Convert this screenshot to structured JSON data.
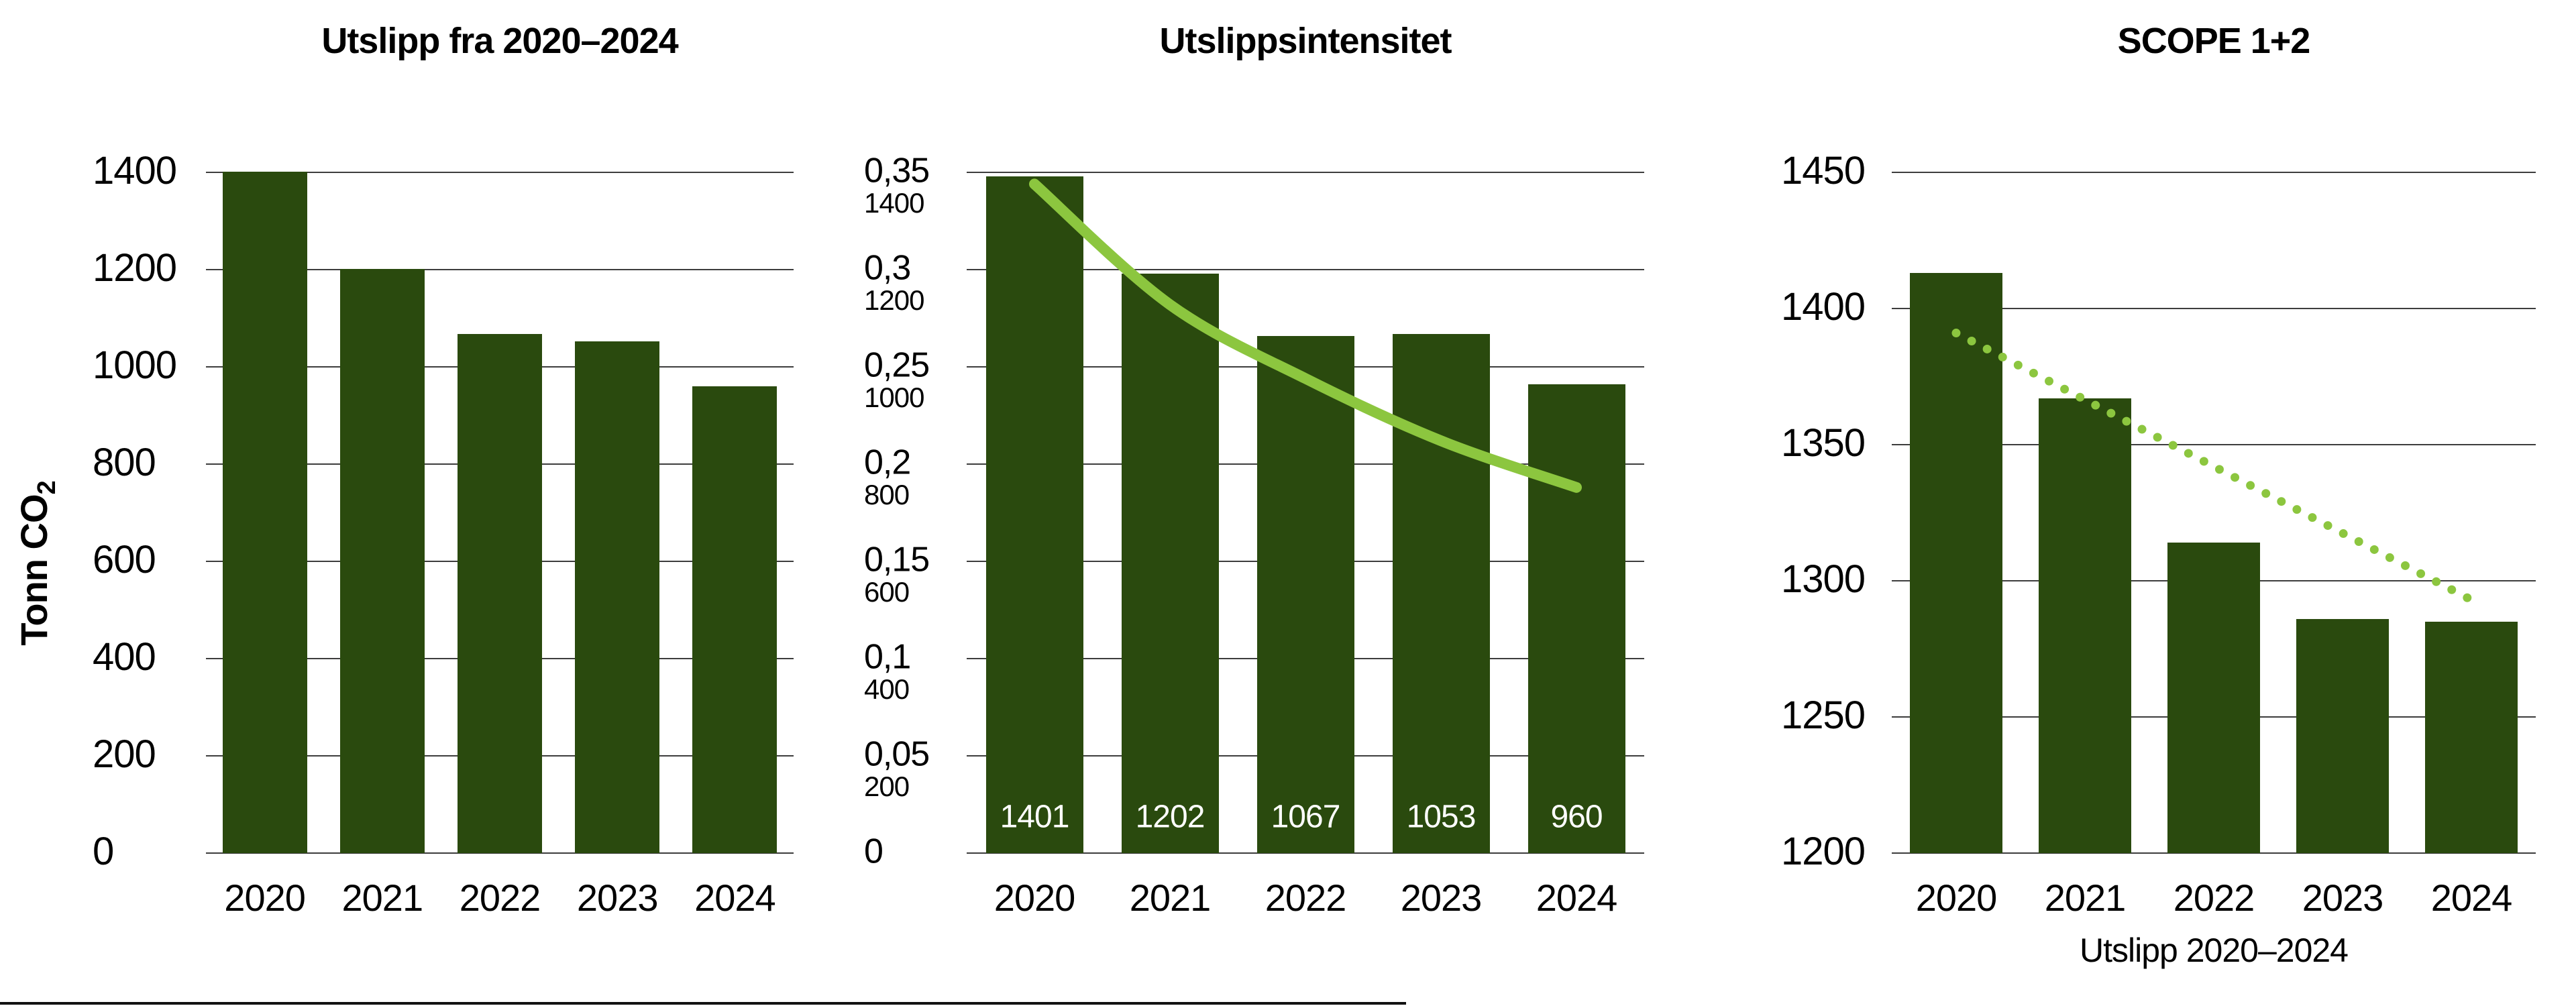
{
  "colors": {
    "bar": "#2a4a0e",
    "trend_line": "#8cc63f",
    "gridline": "#3d3d3d",
    "text": "#000000",
    "bar_label_text": "#ffffff",
    "background": "#ffffff"
  },
  "chart_data": [
    {
      "type": "bar",
      "title": "Utslipp fra 2020–2024",
      "ylabel_main": "Tonn CO",
      "ylabel_sub": "2",
      "categories": [
        "2020",
        "2021",
        "2022",
        "2023",
        "2024"
      ],
      "values": [
        1401,
        1202,
        1067,
        1053,
        960
      ],
      "ylim": [
        0,
        1400
      ],
      "ytick_step": 200,
      "ytick_labels": [
        "1400",
        "1200",
        "1000",
        "800",
        "600",
        "400",
        "200",
        "0"
      ],
      "grid": true,
      "legend": "none"
    },
    {
      "type": "bar+line",
      "title": "Utslippsintensitet",
      "categories": [
        "2020",
        "2021",
        "2022",
        "2023",
        "2024"
      ],
      "series": [
        {
          "name": "utslippsintensitet-bars",
          "type": "bar",
          "values": [
            0.348,
            0.298,
            0.266,
            0.267,
            0.241
          ]
        },
        {
          "name": "trend-curve",
          "type": "line",
          "values": [
            0.344,
            0.282,
            0.244,
            0.212,
            0.188
          ]
        }
      ],
      "bar_value_labels": [
        "1401",
        "1202",
        "1067",
        "1053",
        "960"
      ],
      "ylim": [
        0,
        0.35
      ],
      "ytick_step": 0.05,
      "ytick_labels": [
        "0,35",
        "0,3",
        "0,25",
        "0,2",
        "0,15",
        "0,1",
        "0,05",
        "0"
      ],
      "secondary_ytick_labels": [
        "1400",
        "1200",
        "1000",
        "800",
        "600",
        "400",
        "200"
      ],
      "grid": true,
      "legend": "none"
    },
    {
      "type": "bar+trend",
      "title": "SCOPE 1+2",
      "xlabel": "Utslipp 2020–2024",
      "categories": [
        "2020",
        "2021",
        "2022",
        "2023",
        "2024"
      ],
      "values": [
        1413,
        1367,
        1314,
        1286,
        1285
      ],
      "trend_endpoints": [
        1391,
        1293
      ],
      "ylim": [
        1200,
        1450
      ],
      "ytick_step": 50,
      "ytick_labels": [
        "1450",
        "1400",
        "1350",
        "1300",
        "1250",
        "1200"
      ],
      "grid": true,
      "legend": "none"
    }
  ],
  "page": {
    "bottom_edge_line": true
  }
}
